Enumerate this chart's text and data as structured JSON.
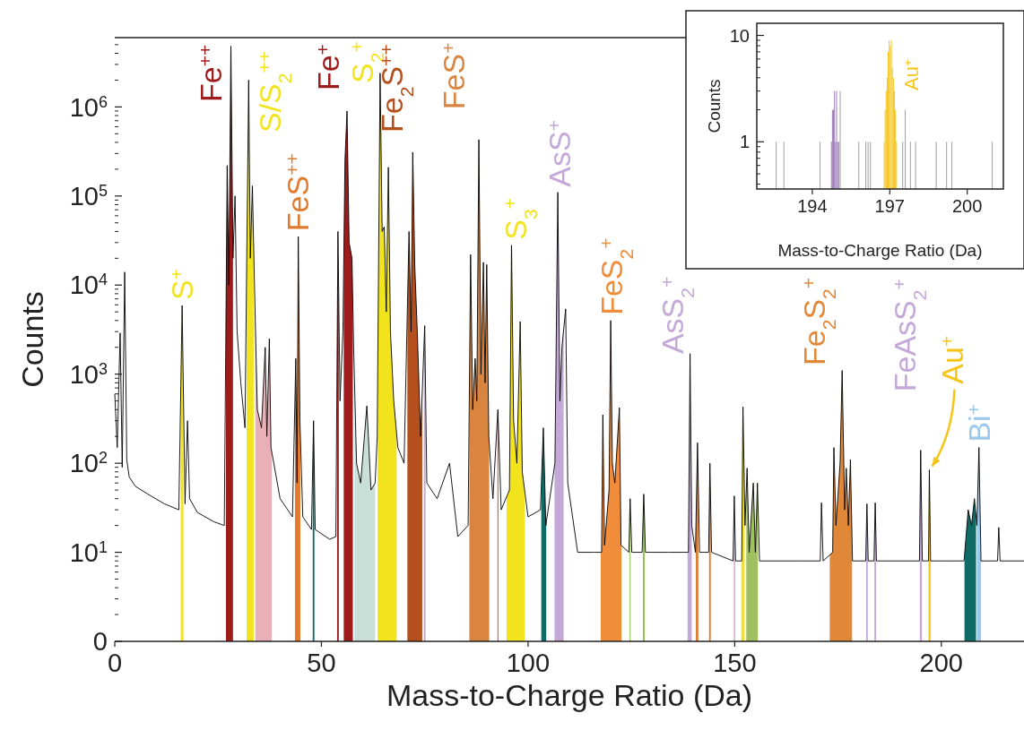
{
  "chart_data": [
    {
      "type": "line",
      "xlabel": "Mass-to-Charge Ratio (Da)",
      "ylabel": "Counts",
      "xlim": [
        0,
        220
      ],
      "xticks": [
        0,
        50,
        100,
        150,
        200
      ],
      "ylim": [
        0,
        6000000
      ],
      "log": "y",
      "yticks": [
        0,
        {
          "value": 10,
          "label": "10$^{1}$"
        },
        {
          "value": 100,
          "label": "10$^{2}$"
        },
        {
          "value": 1000,
          "label": "10$^{3}$"
        },
        {
          "value": 10000,
          "label": "10$^{4}$"
        },
        {
          "value": 100000,
          "label": "10$^{5}$"
        },
        {
          "value": 1000000,
          "label": "10$^{6}$"
        }
      ],
      "series": [
        {
          "color": "#000000",
          "x": [
            0,
            0.6,
            1.3,
            1.8,
            2.4,
            2.9,
            3.5,
            5,
            8,
            12,
            15.5,
            16.3,
            17,
            17.6,
            18.1,
            20,
            24,
            26.5,
            27.2,
            27.6,
            28.1,
            28.6,
            29.1,
            29.6,
            30.5,
            31.5,
            32.4,
            32.8,
            33.3,
            33.8,
            34.5,
            35.5,
            36.4,
            36.8,
            37.4,
            37.8,
            40,
            43,
            43.8,
            44.1,
            44.4,
            44.8,
            45.5,
            47.6,
            48.1,
            48.5,
            52,
            53.5,
            54,
            54.5,
            55.2,
            55.7,
            56.2,
            56.7,
            57.4,
            57.8,
            58.5,
            59.5,
            61,
            62,
            63,
            63.5,
            64.2,
            64.7,
            65.2,
            65.7,
            66.2,
            66.7,
            67.5,
            68.5,
            70,
            71.2,
            71.7,
            72.1,
            72.6,
            73.2,
            74,
            75,
            75.5,
            78,
            81,
            83,
            85.5,
            86.1,
            86.6,
            87.2,
            87.6,
            88.1,
            88.6,
            89.2,
            89.6,
            90,
            90.5,
            91.5,
            92.7,
            93.5,
            95.5,
            96,
            96.5,
            97.3,
            98.1,
            98.6,
            100,
            103,
            103.7,
            104.3,
            106.5,
            107.2,
            107.7,
            108.2,
            109.1,
            109.6,
            112,
            116,
            117.8,
            118.1,
            118.5,
            119.6,
            120,
            120.4,
            121,
            122.1,
            122.5,
            124.4,
            124.7,
            125.1,
            127.6,
            128,
            128.4,
            134,
            138.8,
            139.2,
            139.6,
            140.5,
            141,
            141.5,
            143.7,
            144,
            144.4,
            149.6,
            149.9,
            150.2,
            151.7,
            152,
            152.5,
            153,
            153.5,
            154.5,
            155,
            155.5,
            156,
            165,
            170.7,
            171,
            171.4,
            173.7,
            174,
            174.5,
            175.5,
            176,
            176.6,
            177,
            177.5,
            178,
            178.5,
            181.7,
            182,
            182.3,
            183.7,
            184,
            184.3,
            194.7,
            195,
            195.4,
            196.9,
            197.1,
            197.4,
            200,
            205.5,
            206.5,
            207.3,
            208,
            208.6,
            209.1,
            209.6,
            213.6,
            213.9,
            214.2,
            220
          ],
          "values": [
            600,
            150,
            2900,
            90,
            14000,
            110,
            70,
            55,
            45,
            35,
            30,
            5900,
            35,
            300,
            40,
            28,
            22,
            20,
            220000,
            10000,
            4800000,
            20000,
            100000,
            3000,
            800,
            250,
            2000000,
            20000,
            130000,
            10000,
            400,
            250,
            2000,
            200,
            2500,
            150,
            40,
            25,
            1500,
            60,
            35000,
            300,
            25,
            18,
            300,
            18,
            14,
            15,
            40000,
            500,
            3000,
            250000,
            900000,
            30000,
            20000,
            2000,
            100,
            60,
            440,
            50,
            60,
            200,
            2400000,
            40000,
            45000,
            5000,
            210000,
            3000,
            500,
            150,
            100,
            40000,
            3000,
            310000,
            16000,
            3000,
            200,
            3500,
            60,
            40,
            100,
            15,
            20,
            22000,
            400,
            1500,
            500,
            430000,
            1000,
            18000,
            800,
            17000,
            200,
            40,
            400,
            30,
            50,
            28000,
            300,
            100,
            3900,
            80,
            25,
            30,
            250,
            20,
            100,
            110000,
            500,
            2000,
            5400,
            60,
            10,
            10,
            10,
            350,
            12,
            50,
            4000,
            100,
            60,
            420,
            12,
            10,
            40,
            10,
            10,
            45,
            10,
            10,
            10,
            1700,
            20,
            10,
            170,
            10,
            10,
            100,
            10,
            8,
            43,
            8,
            8,
            430,
            20,
            88,
            10,
            60,
            10,
            60,
            8,
            8,
            8,
            36,
            8,
            10,
            150,
            20,
            100,
            1100,
            30,
            88,
            20,
            110,
            8,
            8,
            35,
            8,
            8,
            36,
            8,
            8,
            140,
            8,
            8,
            84,
            8,
            8,
            8,
            30,
            20,
            40,
            20,
            150,
            8,
            8,
            19,
            8,
            8
          ]
        }
      ],
      "bands": [
        {
          "axis": "x",
          "from": 16.0,
          "to": 16.6,
          "color": "#f2e41c",
          "label": "S$^{+}$"
        },
        {
          "axis": "x",
          "from": 26.9,
          "to": 28.6,
          "color": "#9e1b1b",
          "label": "Fe$^{++}$"
        },
        {
          "axis": "x",
          "from": 31.9,
          "to": 33.6,
          "color": "#f2e41c",
          "label": "S/S$_{2}$$^{++}$"
        },
        {
          "axis": "x",
          "from": 34.0,
          "to": 38.0,
          "color": "#eab0b8"
        },
        {
          "axis": "x",
          "from": 43.6,
          "to": 44.9,
          "color": "#e07a2e",
          "label": "FeS$^{++}$"
        },
        {
          "axis": "x",
          "from": 47.9,
          "to": 48.3,
          "color": "#0e6b66"
        },
        {
          "axis": "x",
          "from": 53.8,
          "to": 54.2,
          "color": "#9e1b1b"
        },
        {
          "axis": "x",
          "from": 55.4,
          "to": 57.6,
          "color": "#9e1b1b",
          "label": "Fe$^{+}$"
        },
        {
          "axis": "x",
          "from": 58.0,
          "to": 63.0,
          "color": "#c8e0d8"
        },
        {
          "axis": "x",
          "from": 63.6,
          "to": 68.2,
          "color": "#f2e41c",
          "label": "S$_{2}$$^{+}$"
        },
        {
          "axis": "x",
          "from": 70.8,
          "to": 74.4,
          "color": "#b4501e",
          "label": "Fe$_{2}$S$^{++}$"
        },
        {
          "axis": "x",
          "from": 74.8,
          "to": 75.2,
          "color": "#c3a8d8"
        },
        {
          "axis": "x",
          "from": 85.8,
          "to": 90.6,
          "color": "#d98540",
          "label": "FeS$^{+}$"
        },
        {
          "axis": "x",
          "from": 92.6,
          "to": 92.8,
          "color": "#d0404e"
        },
        {
          "axis": "x",
          "from": 94.8,
          "to": 99.2,
          "color": "#f2e41c",
          "label": "S$_{3}$$^{+}$"
        },
        {
          "axis": "x",
          "from": 103.2,
          "to": 104.4,
          "color": "#0e6b66"
        },
        {
          "axis": "x",
          "from": 106.4,
          "to": 108.6,
          "color": "#c3a8d8",
          "label": "AsS$^{+}$"
        },
        {
          "axis": "x",
          "from": 117.6,
          "to": 122.6,
          "color": "#f08c3a",
          "label": "FeS$_{2}$$^{+}$"
        },
        {
          "axis": "x",
          "from": 124.6,
          "to": 124.8,
          "color": "#88c040"
        },
        {
          "axis": "x",
          "from": 127.8,
          "to": 128.2,
          "color": "#88c040"
        },
        {
          "axis": "x",
          "from": 138.6,
          "to": 139.6,
          "color": "#c3a8d8",
          "label": "AsS$_{2}$$^{+}$"
        },
        {
          "axis": "x",
          "from": 140.6,
          "to": 141.2,
          "color": "#e07a2e"
        },
        {
          "axis": "x",
          "from": 143.8,
          "to": 144.2,
          "color": "#e07a2e"
        },
        {
          "axis": "x",
          "from": 149.8,
          "to": 150.1,
          "color": "#c3a8d8"
        },
        {
          "axis": "x",
          "from": 151.6,
          "to": 152.4,
          "color": "#f2e41c"
        },
        {
          "axis": "x",
          "from": 152.8,
          "to": 155.6,
          "color": "#a0c060"
        },
        {
          "axis": "x",
          "from": 173.0,
          "to": 178.4,
          "color": "#e08838",
          "label": "Fe$_{2}$S$_{2}$$^{+}$"
        },
        {
          "axis": "x",
          "from": 181.8,
          "to": 182.2,
          "color": "#c3a8d8"
        },
        {
          "axis": "x",
          "from": 183.8,
          "to": 184.2,
          "color": "#c3a8d8"
        },
        {
          "axis": "x",
          "from": 194.8,
          "to": 195.3,
          "color": "#c3a8d8",
          "label": "FeAsS$_{2}$$^{+}$"
        },
        {
          "axis": "x",
          "from": 196.9,
          "to": 197.4,
          "color": "#f5c518"
        },
        {
          "axis": "x",
          "from": 205.6,
          "to": 208.4,
          "color": "#0e6b66"
        },
        {
          "axis": "x",
          "from": 208.6,
          "to": 209.6,
          "color": "#9cc8ec",
          "label": "Bi$^{+}$"
        }
      ],
      "annotations": [
        {
          "text": "Au$^{+}$",
          "x": 197.1,
          "y": 84
        }
      ]
    },
    {
      "type": "bar",
      "xlabel": "Mass-to-Charge Ratio (Da)",
      "ylabel": "Counts",
      "xlim": [
        191.85,
        201.4
      ],
      "xticks": [
        194,
        197,
        200
      ],
      "ylim": [
        0.36,
        13
      ],
      "yticks": [
        1,
        10
      ],
      "log": "y",
      "series": [
        {
          "color": "#a0a0a0",
          "x": [
            192.6,
            192.9,
            194.3,
            195.08,
            195.8,
            196.07,
            196.16,
            196.25,
            197.5,
            197.6,
            197.8,
            198.0,
            198.8,
            199.2,
            199.4,
            200.97
          ],
          "values": [
            1,
            1,
            1,
            3,
            1,
            1,
            1,
            1,
            1,
            2,
            1,
            1,
            1,
            1,
            1,
            1
          ]
        },
        {
          "color": "#9b7bb8",
          "x": [
            194.74,
            194.78,
            194.82,
            194.86,
            194.9,
            194.94,
            194.98,
            195.02
          ],
          "values": [
            1,
            2,
            2,
            3,
            1,
            3,
            1,
            1
          ]
        },
        {
          "color": "#f5c518",
          "x": [
            196.78,
            196.82,
            196.86,
            196.9,
            196.94,
            196.98,
            197.02,
            197.06,
            197.1,
            197.14,
            197.18,
            197.22,
            197.26
          ],
          "values": [
            1,
            2,
            3,
            4,
            7,
            9,
            8,
            9,
            5,
            4,
            3,
            2,
            1
          ]
        }
      ],
      "annotations": [
        {
          "text": "Au$^{+}$",
          "x": 197.2,
          "y": 8
        }
      ]
    }
  ]
}
